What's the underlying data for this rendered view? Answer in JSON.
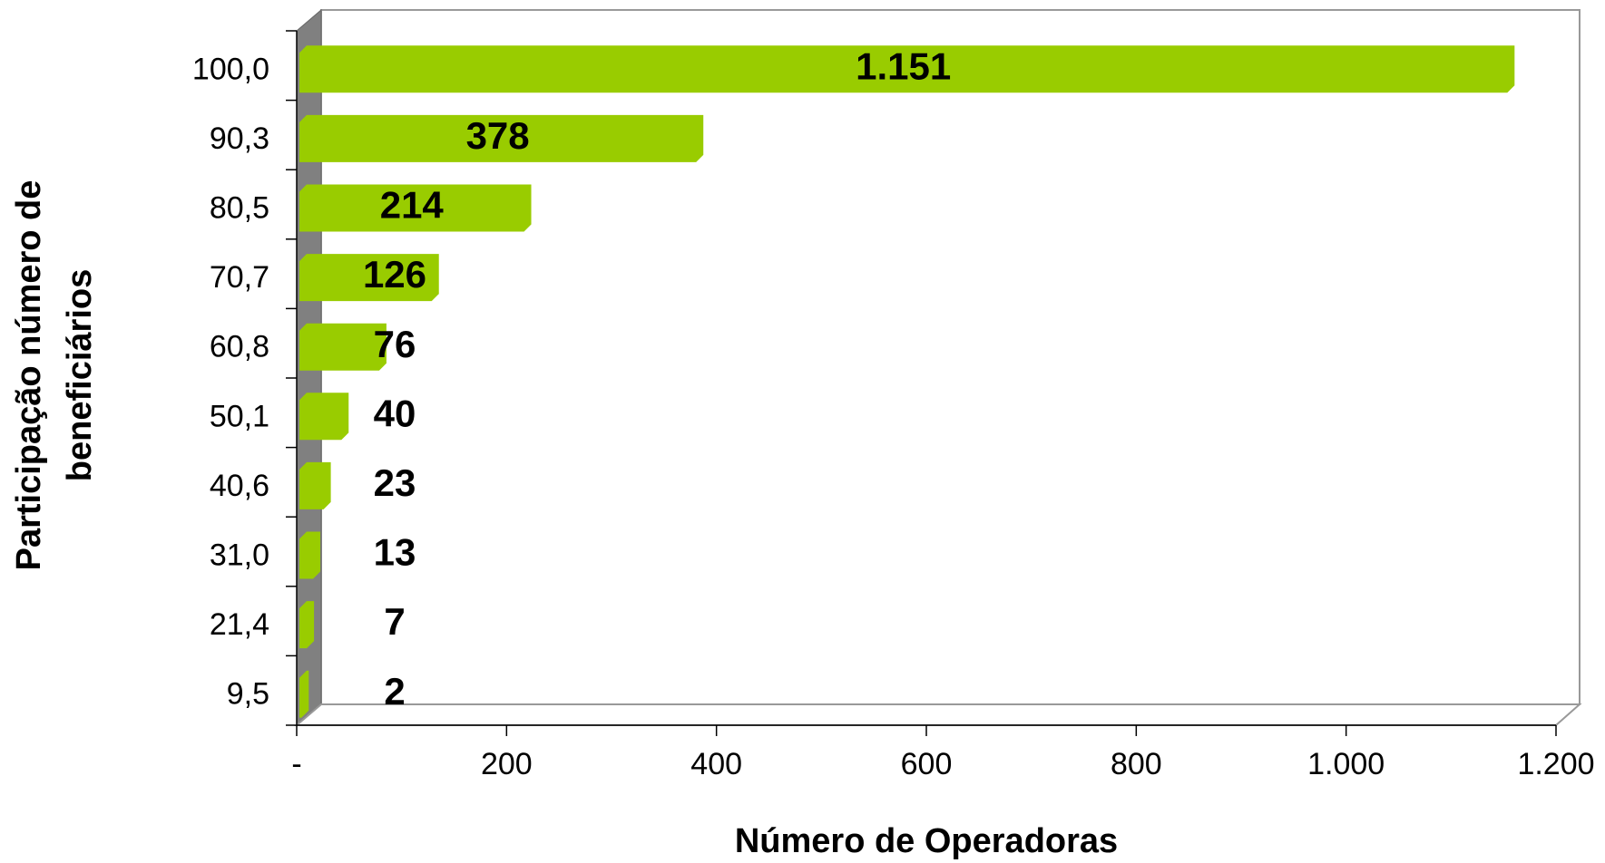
{
  "chart_data": {
    "type": "bar",
    "orientation": "horizontal",
    "x_label": "Número de Operadoras",
    "y_label": [
      "Participação número de",
      "beneficiários"
    ],
    "categories": [
      "100,0",
      "90,3",
      "80,5",
      "70,7",
      "60,8",
      "50,1",
      "40,6",
      "31,0",
      "21,4",
      "9,5"
    ],
    "values": [
      1151,
      378,
      214,
      126,
      76,
      40,
      23,
      13,
      7,
      2
    ],
    "value_labels": [
      "1.151",
      "378",
      "214",
      "126",
      "76",
      "40",
      "23",
      "13",
      "7",
      "2"
    ],
    "color": "#99cc00",
    "xlim": [
      0,
      1200
    ],
    "xticks": [
      {
        "value": 0,
        "label": "-"
      },
      200,
      400,
      600,
      800,
      {
        "value": 1000,
        "label": "1.000"
      },
      {
        "value": 1200,
        "label": "1.200"
      }
    ]
  }
}
